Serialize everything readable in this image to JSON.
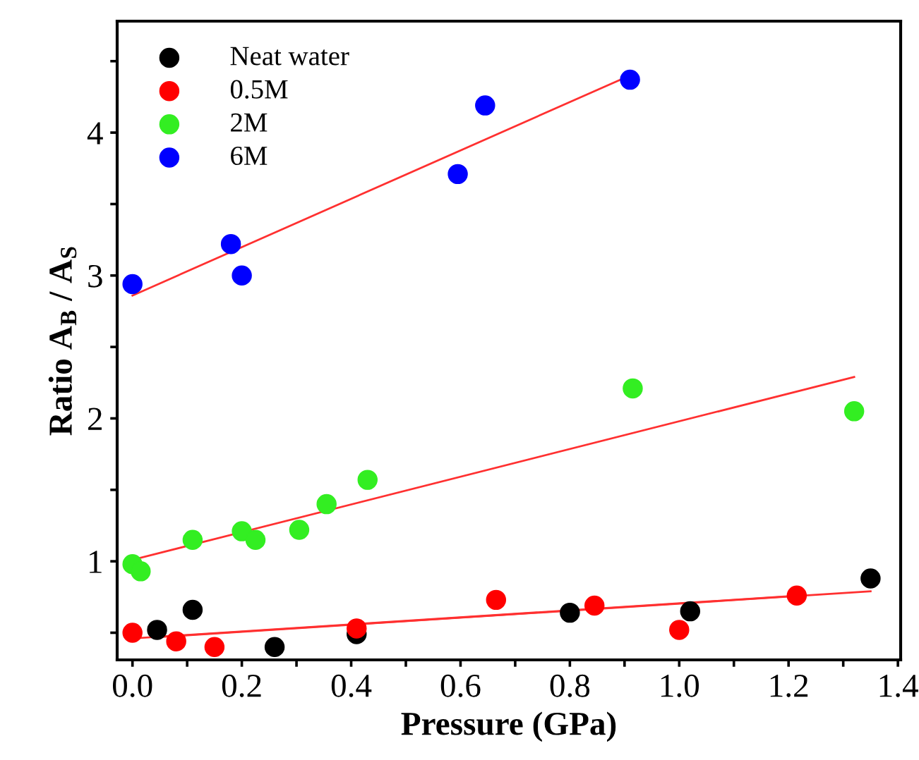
{
  "chart_data": {
    "type": "scatter",
    "xlabel": "Pressure (GPa)",
    "ylabel": "Ratio A$_{B}$ / A$_{S}$",
    "xlim": [
      -0.028,
      1.405
    ],
    "ylim": [
      0.31,
      4.78
    ],
    "xticks": [
      {
        "value": 0.0,
        "label": "0.0"
      },
      {
        "value": 0.1,
        "label": null
      },
      {
        "value": 0.2,
        "label": "0.2"
      },
      {
        "value": 0.3,
        "label": null
      },
      {
        "value": 0.4,
        "label": "0.4"
      },
      {
        "value": 0.5,
        "label": null
      },
      {
        "value": 0.6,
        "label": "0.6"
      },
      {
        "value": 0.7,
        "label": null
      },
      {
        "value": 0.8,
        "label": "0.8"
      },
      {
        "value": 0.9,
        "label": null
      },
      {
        "value": 1.0,
        "label": "1.0"
      },
      {
        "value": 1.1,
        "label": null
      },
      {
        "value": 1.2,
        "label": "1.2"
      },
      {
        "value": 1.3,
        "label": null
      },
      {
        "value": 1.4,
        "label": "1.4"
      }
    ],
    "yticks": [
      {
        "value": 0.5,
        "label": null
      },
      1,
      {
        "value": 1.5,
        "label": null
      },
      2,
      {
        "value": 2.5,
        "label": null
      },
      3,
      {
        "value": 3.5,
        "label": null
      },
      4,
      {
        "value": 4.5,
        "label": null
      }
    ],
    "legend": "top left",
    "grid": false,
    "series": [
      {
        "name": "Neat water",
        "color": "#000000",
        "marker": "circle",
        "x": [
          0.045,
          0.11,
          0.26,
          0.41,
          0.8,
          1.02,
          1.35
        ],
        "values": [
          0.52,
          0.66,
          0.4,
          0.49,
          0.64,
          0.65,
          0.88
        ]
      },
      {
        "name": "0.5M",
        "color": "#ff0000",
        "marker": "circle",
        "x": [
          0.0,
          0.08,
          0.15,
          0.41,
          0.665,
          0.845,
          1.0,
          1.215
        ],
        "values": [
          0.5,
          0.44,
          0.4,
          0.53,
          0.73,
          0.69,
          0.52,
          0.76
        ]
      },
      {
        "name": "2M",
        "color": "#33ee22",
        "marker": "circle",
        "x": [
          0.0,
          0.015,
          0.11,
          0.2,
          0.225,
          0.305,
          0.355,
          0.43,
          0.915,
          1.32
        ],
        "values": [
          0.98,
          0.93,
          1.15,
          1.21,
          1.15,
          1.22,
          1.4,
          1.57,
          2.21,
          2.05
        ]
      },
      {
        "name": "6M",
        "color": "#0000ff",
        "marker": "circle",
        "x": [
          0.0,
          0.18,
          0.2,
          0.595,
          0.645,
          0.91
        ],
        "values": [
          2.94,
          3.22,
          3.0,
          3.71,
          4.19,
          4.37
        ]
      },
      {
        "type": "line",
        "color": "#ff3030",
        "x": [
          0.05,
          1.35
        ],
        "values": [
          0.47,
          0.79
        ]
      },
      {
        "type": "line",
        "color": "#ff3030",
        "x": [
          0.0,
          1.22
        ],
        "values": [
          0.46,
          0.76
        ]
      },
      {
        "type": "line",
        "color": "#ff3030",
        "x": [
          0.0,
          1.32
        ],
        "values": [
          1.01,
          2.29
        ]
      },
      {
        "type": "line",
        "color": "#ff3030",
        "x": [
          0.0,
          0.91
        ],
        "values": [
          2.86,
          4.4
        ]
      }
    ]
  }
}
